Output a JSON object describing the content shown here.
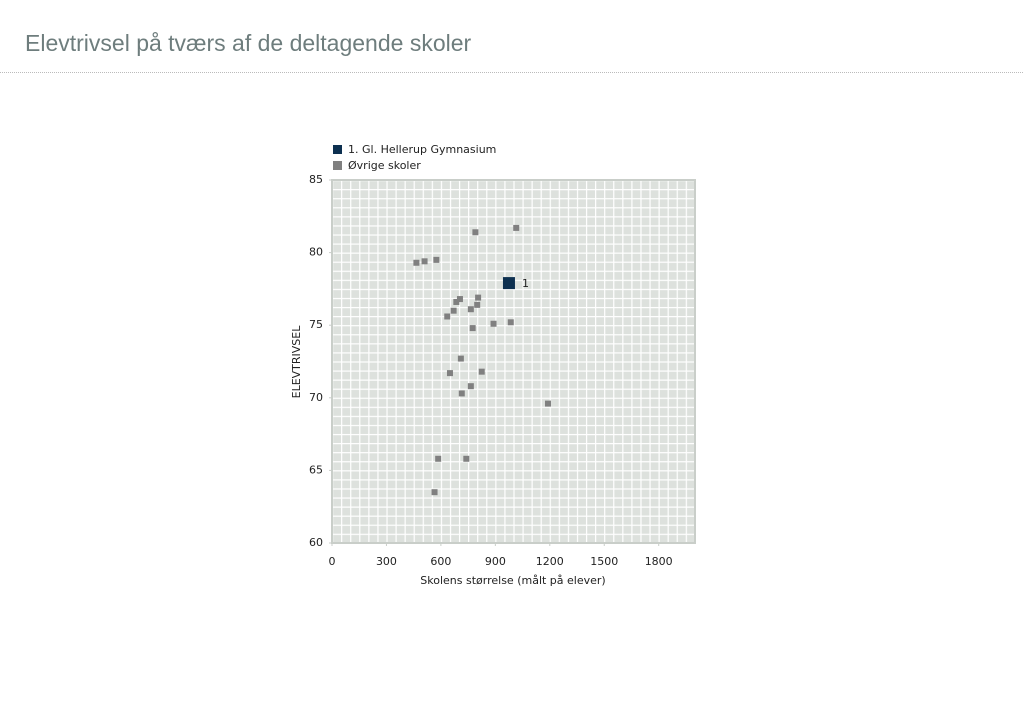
{
  "chart_data": {
    "type": "scatter",
    "title": "Elevtrivsel på tværs af de deltagende skoler",
    "x_label": "Skolens størrelse (målt på elever)",
    "y_label": "ELEVTRIVSEL",
    "xlim": [
      0,
      2000
    ],
    "xticks": [
      0,
      300,
      600,
      900,
      1200,
      1500,
      1800
    ],
    "ylim": [
      60,
      85
    ],
    "yticks": [
      60,
      65,
      70,
      75,
      80,
      85
    ],
    "legend": "top-left",
    "series": [
      {
        "name": "1. Gl. Hellerup Gymnasium",
        "color": "#0d3050",
        "x": [
          975
        ],
        "values": [
          77.9
        ],
        "labels": [
          "1"
        ]
      },
      {
        "name": "Øvrige skoler",
        "color": "#808080",
        "x": [
          465,
          510,
          575,
          790,
          1015,
          705,
          685,
          805,
          670,
          765,
          800,
          635,
          890,
          775,
          985,
          710,
          650,
          825,
          765,
          715,
          1190,
          585,
          740,
          565
        ],
        "values": [
          79.3,
          79.4,
          79.5,
          81.4,
          81.7,
          76.8,
          76.6,
          76.9,
          76.0,
          76.1,
          76.4,
          75.6,
          75.1,
          74.8,
          75.2,
          72.7,
          71.7,
          71.8,
          70.8,
          70.3,
          69.6,
          65.8,
          65.8,
          63.5
        ]
      }
    ]
  }
}
